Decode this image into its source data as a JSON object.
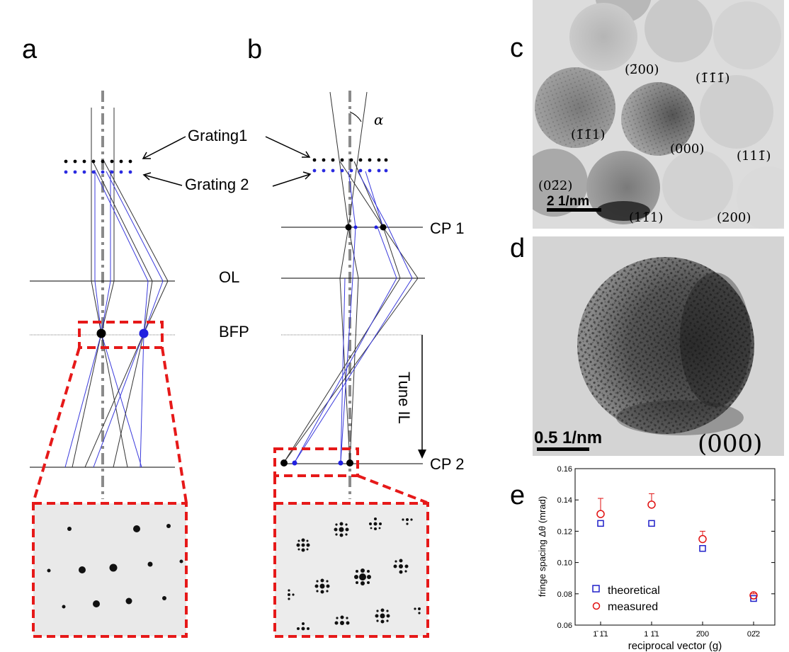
{
  "panel_labels": {
    "a": "a",
    "b": "b",
    "c": "c",
    "d": "d",
    "e": "e"
  },
  "diagram": {
    "grating1": "Grating1",
    "grating2": "Grating 2",
    "ol": "OL",
    "bfp": "BFP",
    "cp1": "CP 1",
    "cp2": "CP 2",
    "tune": "Tune IL",
    "alpha": "α"
  },
  "micrograph_c": {
    "scale_bar": "2 1/nm",
    "spots": [
      "(2̄00)",
      "(1̄1̄1̄)",
      "(1̄1̄1)",
      "(000)",
      "(111̄)",
      "(02̄2)",
      "(11̄1)",
      "(200)"
    ]
  },
  "micrograph_d": {
    "scale_bar": "0.5 1/nm",
    "label": "(000)"
  },
  "colors": {
    "black_ray": "#333333",
    "blue_ray": "#3a3adc",
    "red_dash": "#e61919",
    "axis": "#8a8a8a"
  },
  "chart_data": {
    "type": "scatter",
    "xlabel": "reciprocal vector (g)",
    "ylabel": "fringe spacing Δθ (mrad)",
    "categories": [
      "1̄ 1̄1",
      "1 1̄1",
      "2̄00",
      "02̄2"
    ],
    "ylim": [
      0.06,
      0.16
    ],
    "yticks": [
      "0.06",
      "0.08",
      "0.10",
      "0.12",
      "0.14",
      "0.16"
    ],
    "legend_position": "bottom-left",
    "series": [
      {
        "name": "theoretical",
        "marker": "square",
        "color": "#1f1fc8",
        "values": [
          0.125,
          0.125,
          0.109,
          0.077
        ]
      },
      {
        "name": "measured",
        "marker": "circle",
        "color": "#e01010",
        "values": [
          0.131,
          0.137,
          0.115,
          0.079
        ],
        "errors": [
          0.01,
          0.007,
          0.005,
          0.001
        ]
      }
    ]
  }
}
